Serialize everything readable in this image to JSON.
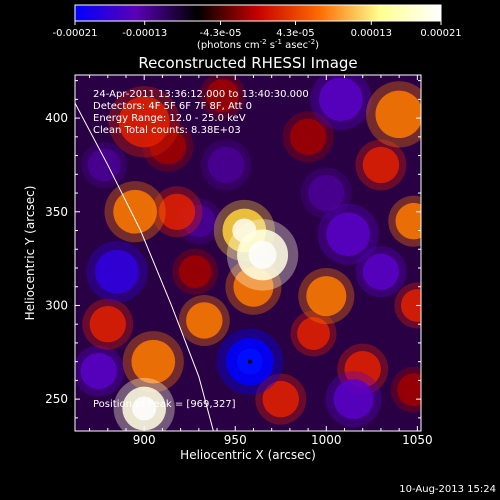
{
  "chart_data": {
    "type": "heatmap",
    "title": "Reconstructed RHESSI Image",
    "xlabel": "Heliocentric X (arcsec)",
    "ylabel": "Heliocentric Y (arcsec)",
    "xlim": [
      862,
      1052
    ],
    "ylim": [
      233,
      423
    ],
    "x_ticks": [
      900,
      950,
      1000,
      1050
    ],
    "y_ticks": [
      250,
      300,
      350,
      400
    ],
    "colorbar": {
      "ticks": [
        "-0.00021",
        "-0.00013",
        "-4.3e-05",
        "4.3e-05",
        "0.00013",
        "0.00021"
      ],
      "tick_values": [
        -0.00021,
        -0.00013,
        -4.3e-05,
        4.3e-05,
        0.00013,
        0.00021
      ],
      "range": [
        -0.00021,
        0.00021
      ],
      "units_line1": "(photons cm",
      "units_exp1": "-2",
      "units_line2": " s",
      "units_exp2": "-1",
      "units_line3": " asec",
      "units_exp3": "-2",
      "units_close": ")",
      "colors": [
        "#0000ff",
        "#5a00b4",
        "#000000",
        "#c80000",
        "#ff6a00",
        "#ffff90",
        "#ffffff"
      ]
    },
    "annotations": [
      "24-Apr-2011 13:36:12.000 to 13:40:30.000",
      "Detectors: 4F 5F 6F 7F 8F, Att 0",
      "Energy Range: 12.0 - 25.0 keV",
      "Clean    Total counts: 8.38E+03"
    ],
    "peak_label": "Position of Peak = [969,327]",
    "peak": [
      969,
      327
    ],
    "marker_point": [
      958,
      270
    ],
    "limb_curve": [
      [
        862,
        408
      ],
      [
        880,
        375
      ],
      [
        898,
        340
      ],
      [
        915,
        300
      ],
      [
        930,
        262
      ],
      [
        938,
        233
      ]
    ],
    "blobs": [
      {
        "x": 965,
        "y": 327,
        "v": 0.00021,
        "r": 14
      },
      {
        "x": 955,
        "y": 340,
        "v": 0.00017,
        "r": 12
      },
      {
        "x": 960,
        "y": 310,
        "v": 0.00014,
        "r": 11
      },
      {
        "x": 900,
        "y": 398,
        "v": 8e-05,
        "r": 14
      },
      {
        "x": 895,
        "y": 350,
        "v": 0.00013,
        "r": 12
      },
      {
        "x": 918,
        "y": 350,
        "v": 7e-05,
        "r": 10
      },
      {
        "x": 913,
        "y": 385,
        "v": 6e-05,
        "r": 10
      },
      {
        "x": 900,
        "y": 245,
        "v": 0.00019,
        "r": 12
      },
      {
        "x": 905,
        "y": 270,
        "v": 0.00011,
        "r": 12
      },
      {
        "x": 880,
        "y": 290,
        "v": 9e-05,
        "r": 10
      },
      {
        "x": 933,
        "y": 292,
        "v": 0.00012,
        "r": 10
      },
      {
        "x": 928,
        "y": 318,
        "v": 6e-05,
        "r": 9
      },
      {
        "x": 1000,
        "y": 305,
        "v": 0.00012,
        "r": 11
      },
      {
        "x": 993,
        "y": 285,
        "v": 9e-05,
        "r": 9
      },
      {
        "x": 1048,
        "y": 345,
        "v": 0.00013,
        "r": 10
      },
      {
        "x": 1040,
        "y": 402,
        "v": 0.00014,
        "r": 13
      },
      {
        "x": 1030,
        "y": 375,
        "v": 9e-05,
        "r": 10
      },
      {
        "x": 1020,
        "y": 266,
        "v": 8e-05,
        "r": 10
      },
      {
        "x": 1050,
        "y": 300,
        "v": 9e-05,
        "r": 9
      },
      {
        "x": 1048,
        "y": 255,
        "v": 6e-05,
        "r": 9
      },
      {
        "x": 975,
        "y": 250,
        "v": 8e-05,
        "r": 10
      },
      {
        "x": 990,
        "y": 390,
        "v": 6e-05,
        "r": 10
      },
      {
        "x": 943,
        "y": 412,
        "v": 4e-05,
        "r": 9
      },
      {
        "x": 958,
        "y": 270,
        "v": -0.00021,
        "r": 13
      },
      {
        "x": 885,
        "y": 318,
        "v": -0.00013,
        "r": 12
      },
      {
        "x": 1012,
        "y": 338,
        "v": -0.00012,
        "r": 12
      },
      {
        "x": 1030,
        "y": 318,
        "v": -0.00011,
        "r": 10
      },
      {
        "x": 1008,
        "y": 410,
        "v": -0.0001,
        "r": 12
      },
      {
        "x": 1015,
        "y": 250,
        "v": -0.0001,
        "r": 11
      },
      {
        "x": 875,
        "y": 265,
        "v": -8e-05,
        "r": 10
      },
      {
        "x": 945,
        "y": 375,
        "v": -7e-05,
        "r": 10
      },
      {
        "x": 930,
        "y": 345,
        "v": -5e-05,
        "r": 9
      },
      {
        "x": 1000,
        "y": 360,
        "v": -6e-05,
        "r": 10
      },
      {
        "x": 878,
        "y": 375,
        "v": -5e-05,
        "r": 9
      }
    ]
  },
  "footer": {
    "date": "10-Aug-2013 15:24"
  }
}
